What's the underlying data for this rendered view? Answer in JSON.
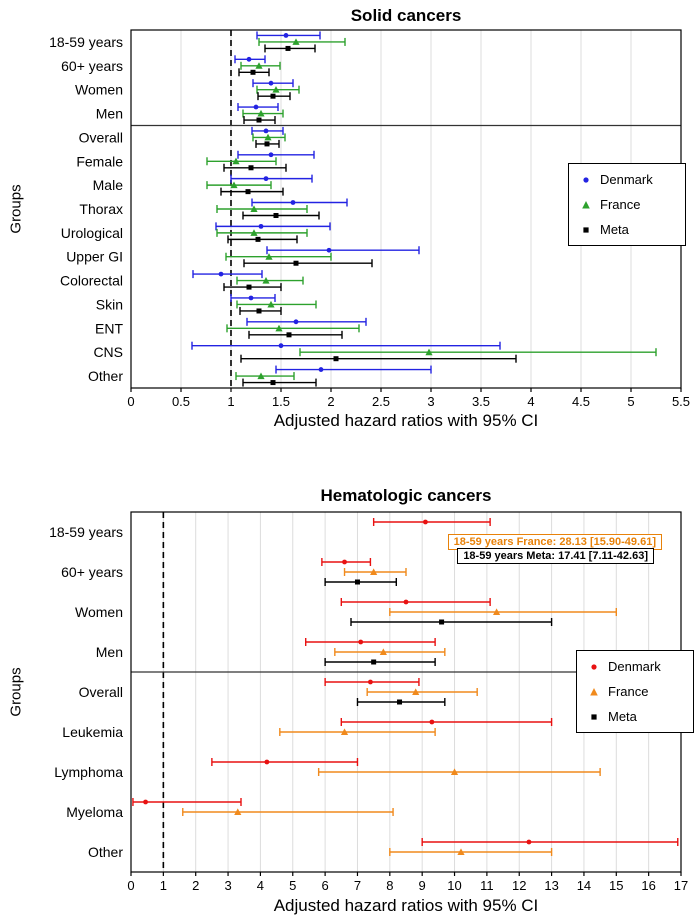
{
  "chart_data": [
    {
      "type": "scatter",
      "subtype": "forest-plot",
      "title": "Solid cancers",
      "ylabel": "Groups",
      "xlabel": "Adjusted hazard ratios with 95% CI",
      "x_axis": {
        "min": 0,
        "max": 5.5,
        "tick_step": 0.5,
        "reference_line": 1,
        "grid": true
      },
      "value_format": "[lower_95CI, estimate, upper_95CI]",
      "legend_position": "middle-right",
      "series": [
        {
          "name": "Denmark",
          "color": "#2323e2",
          "marker": "circle"
        },
        {
          "name": "France",
          "color": "#2da12d",
          "marker": "triangle"
        },
        {
          "name": "Meta",
          "color": "#000000",
          "marker": "square"
        }
      ],
      "separator_after": "Men",
      "groups": [
        {
          "label": "18-59 years",
          "values": {
            "Denmark": [
              1.26,
              1.55,
              1.89
            ],
            "France": [
              1.28,
              1.65,
              2.14
            ],
            "Meta": [
              1.34,
              1.57,
              1.84
            ]
          }
        },
        {
          "label": "60+ years",
          "values": {
            "Denmark": [
              1.04,
              1.18,
              1.34
            ],
            "France": [
              1.1,
              1.28,
              1.49
            ],
            "Meta": [
              1.08,
              1.22,
              1.38
            ]
          }
        },
        {
          "label": "Women",
          "values": {
            "Denmark": [
              1.22,
              1.4,
              1.62
            ],
            "France": [
              1.26,
              1.45,
              1.68
            ],
            "Meta": [
              1.27,
              1.42,
              1.59
            ]
          }
        },
        {
          "label": "Men",
          "values": {
            "Denmark": [
              1.07,
              1.25,
              1.47
            ],
            "France": [
              1.12,
              1.3,
              1.52
            ],
            "Meta": [
              1.13,
              1.28,
              1.44
            ]
          }
        },
        {
          "label": "Overall",
          "values": {
            "Denmark": [
              1.21,
              1.35,
              1.52
            ],
            "France": [
              1.22,
              1.37,
              1.54
            ],
            "Meta": [
              1.25,
              1.36,
              1.48
            ]
          }
        },
        {
          "label": "Female",
          "values": {
            "Denmark": [
              1.07,
              1.4,
              1.83
            ],
            "France": [
              0.76,
              1.05,
              1.45
            ],
            "Meta": [
              0.93,
              1.2,
              1.55
            ]
          }
        },
        {
          "label": "Male",
          "values": {
            "Denmark": [
              1.0,
              1.35,
              1.81
            ],
            "France": [
              0.76,
              1.03,
              1.4
            ],
            "Meta": [
              0.9,
              1.17,
              1.52
            ]
          }
        },
        {
          "label": "Thorax",
          "values": {
            "Denmark": [
              1.21,
              1.62,
              2.16
            ],
            "France": [
              0.86,
              1.23,
              1.76
            ],
            "Meta": [
              1.12,
              1.45,
              1.88
            ]
          }
        },
        {
          "label": "Urological",
          "values": {
            "Denmark": [
              0.85,
              1.3,
              1.99
            ],
            "France": [
              0.86,
              1.23,
              1.76
            ],
            "Meta": [
              0.97,
              1.27,
              1.66
            ]
          }
        },
        {
          "label": "Upper GI",
          "values": {
            "Denmark": [
              1.36,
              1.98,
              2.88
            ],
            "France": [
              0.95,
              1.38,
              2.0
            ],
            "Meta": [
              1.13,
              1.65,
              2.41
            ]
          }
        },
        {
          "label": "Colorectal",
          "values": {
            "Denmark": [
              0.62,
              0.9,
              1.31
            ],
            "France": [
              1.06,
              1.35,
              1.72
            ],
            "Meta": [
              0.93,
              1.18,
              1.5
            ]
          }
        },
        {
          "label": "Skin",
          "values": {
            "Denmark": [
              1.0,
              1.2,
              1.44
            ],
            "France": [
              1.06,
              1.4,
              1.85
            ],
            "Meta": [
              1.09,
              1.28,
              1.5
            ]
          }
        },
        {
          "label": "ENT",
          "values": {
            "Denmark": [
              1.16,
              1.65,
              2.35
            ],
            "France": [
              0.96,
              1.48,
              2.28
            ],
            "Meta": [
              1.18,
              1.58,
              2.11
            ]
          }
        },
        {
          "label": "CNS",
          "values": {
            "Denmark": [
              0.61,
              1.5,
              3.69
            ],
            "France": [
              1.69,
              2.98,
              5.25
            ],
            "Meta": [
              1.1,
              2.05,
              3.85
            ]
          }
        },
        {
          "label": "Other",
          "values": {
            "Denmark": [
              1.45,
              1.9,
              3.0
            ],
            "France": [
              1.05,
              1.3,
              1.63
            ],
            "Meta": [
              1.12,
              1.42,
              1.85
            ]
          }
        }
      ],
      "annotations": []
    },
    {
      "type": "scatter",
      "subtype": "forest-plot",
      "title": "Hematologic cancers",
      "ylabel": "Groups",
      "xlabel": "Adjusted hazard ratios with 95% CI",
      "x_axis": {
        "min": 0,
        "max": 17,
        "tick_step": 1,
        "reference_line": 1,
        "grid": true
      },
      "value_format": "[lower_95CI, estimate, upper_95CI]",
      "legend_position": "middle-right",
      "series": [
        {
          "name": "Denmark",
          "color": "#e81111",
          "marker": "circle"
        },
        {
          "name": "France",
          "color": "#f08a1d",
          "marker": "triangle"
        },
        {
          "name": "Meta",
          "color": "#000000",
          "marker": "square"
        }
      ],
      "separator_after": "Men",
      "groups": [
        {
          "label": "18-59 years",
          "values": {
            "Denmark": [
              7.5,
              9.1,
              11.1
            ],
            "France": null,
            "Meta": null
          }
        },
        {
          "label": "60+ years",
          "values": {
            "Denmark": [
              5.9,
              6.6,
              7.4
            ],
            "France": [
              6.6,
              7.5,
              8.5
            ],
            "Meta": [
              6.0,
              7.0,
              8.2
            ]
          }
        },
        {
          "label": "Women",
          "values": {
            "Denmark": [
              6.5,
              8.5,
              11.1
            ],
            "France": [
              8.0,
              11.3,
              15.0
            ],
            "Meta": [
              6.8,
              9.6,
              13.0
            ]
          }
        },
        {
          "label": "Men",
          "values": {
            "Denmark": [
              5.4,
              7.1,
              9.4
            ],
            "France": [
              6.3,
              7.8,
              9.7
            ],
            "Meta": [
              6.0,
              7.5,
              9.4
            ]
          }
        },
        {
          "label": "Overall",
          "values": {
            "Denmark": [
              6.0,
              7.4,
              8.9
            ],
            "France": [
              7.3,
              8.8,
              10.7
            ],
            "Meta": [
              7.0,
              8.3,
              9.7
            ]
          }
        },
        {
          "label": "Leukemia",
          "values": {
            "Denmark": [
              6.5,
              9.3,
              13.0
            ],
            "France": [
              4.6,
              6.6,
              9.4
            ],
            "Meta": null
          }
        },
        {
          "label": "Lymphoma",
          "values": {
            "Denmark": [
              2.5,
              4.2,
              7.0
            ],
            "France": [
              5.8,
              10.0,
              14.5
            ],
            "Meta": null
          }
        },
        {
          "label": "Myeloma",
          "values": {
            "Denmark": [
              0.06,
              0.45,
              3.4
            ],
            "France": [
              1.6,
              3.3,
              8.1
            ],
            "Meta": null
          }
        },
        {
          "label": "Other",
          "values": {
            "Denmark": [
              9.0,
              12.3,
              16.9
            ],
            "France": [
              8.0,
              10.2,
              13.0
            ],
            "Meta": null
          }
        }
      ],
      "annotations": [
        {
          "group": "18-59 years",
          "series": "France",
          "text": "18-59 years France: 28.13 [15.90-49.61]",
          "value": 28.13,
          "ci_lower": 15.9,
          "ci_upper": 49.61,
          "color": "#e8820a"
        },
        {
          "group": "18-59 years",
          "series": "Meta",
          "text": "18-59 years Meta: 17.41 [7.11-42.63]",
          "value": 17.41,
          "ci_lower": 7.11,
          "ci_upper": 42.63,
          "color": "#000000"
        }
      ]
    }
  ]
}
